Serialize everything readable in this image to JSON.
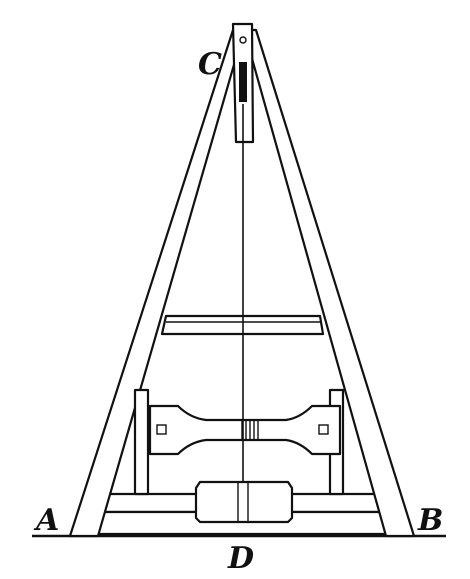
{
  "figure": {
    "labels": {
      "a": "A",
      "b": "B",
      "c": "C",
      "d": "D"
    },
    "colors": {
      "ink": "#111111",
      "paper": "#ffffff"
    }
  }
}
